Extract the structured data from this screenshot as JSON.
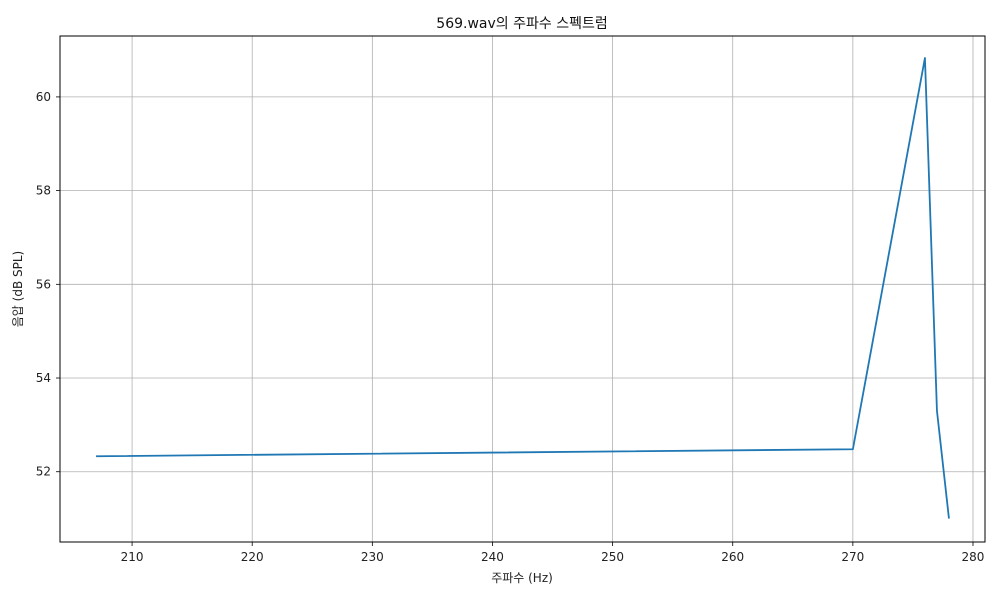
{
  "chart_data": {
    "type": "line",
    "title": "569.wav의 주파수 스펙트럼",
    "xlabel": "주파수 (Hz)",
    "ylabel": "음압 (dB SPL)",
    "xlim": [
      204.0,
      281.0
    ],
    "ylim": [
      50.5,
      61.3
    ],
    "xticks": [
      210,
      220,
      230,
      240,
      250,
      260,
      270,
      280
    ],
    "yticks": [
      52,
      54,
      56,
      58,
      60
    ],
    "grid": true,
    "series": [
      {
        "color": "#1f77b4",
        "x": [
          207,
          270,
          276,
          277,
          278
        ],
        "y": [
          52.33,
          52.48,
          60.83,
          53.3,
          51.0
        ]
      }
    ]
  }
}
